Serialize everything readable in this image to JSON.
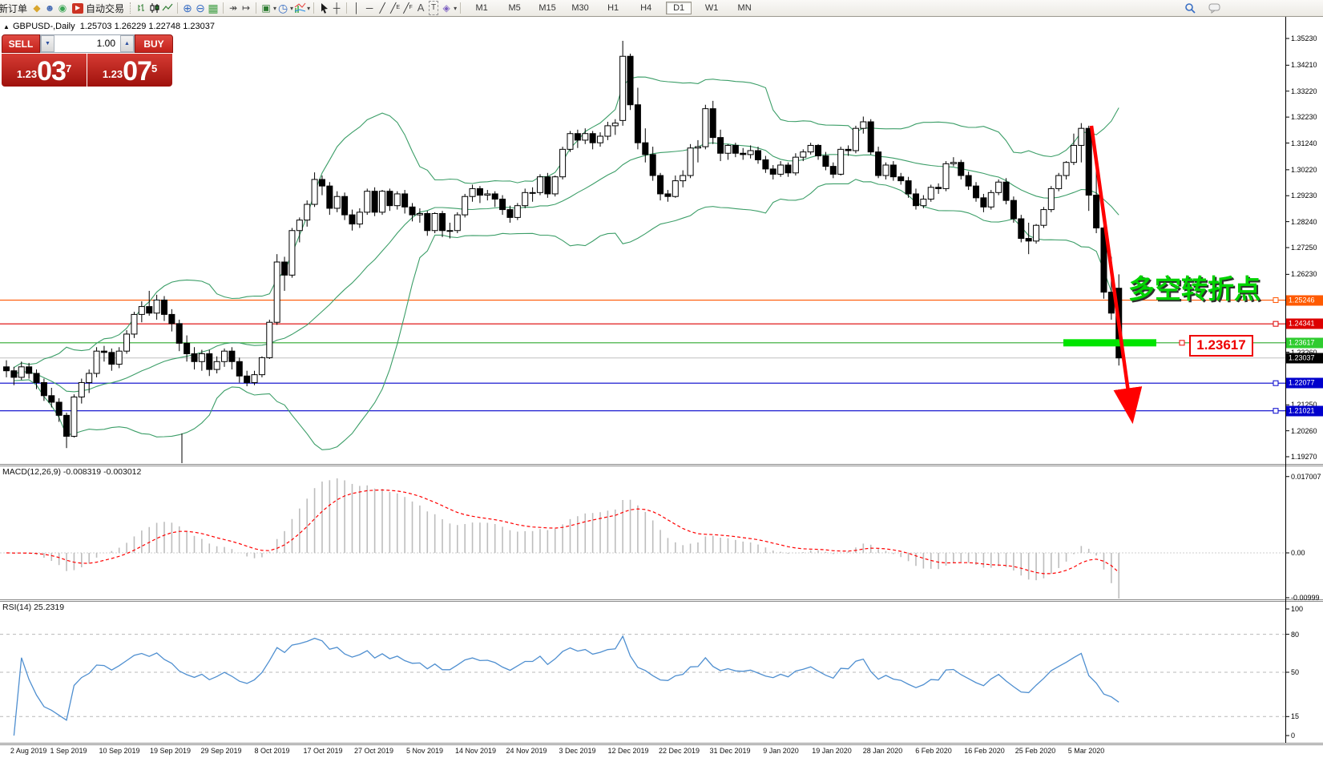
{
  "window": {
    "title_symbol": "GBPUSD-,Daily",
    "title_ohlc": "1.25703 1.26229 1.22748 1.23037"
  },
  "toolbar": {
    "new_order": "新订单",
    "autotrading": "自动交易",
    "timeframes": [
      "M1",
      "M5",
      "M15",
      "M30",
      "H1",
      "H4",
      "D1",
      "W1",
      "MN"
    ],
    "active_timeframe": "D1"
  },
  "trade_panel": {
    "sell_label": "SELL",
    "buy_label": "BUY",
    "volume": "1.00",
    "sell_price_small": "1.23",
    "sell_price_big": "03",
    "sell_price_sup": "7",
    "buy_price_small": "1.23",
    "buy_price_big": "07",
    "buy_price_sup": "5"
  },
  "annotations": {
    "turning_point": "多空转折点",
    "price_box": "1.23617"
  },
  "panes": {
    "macd_label": "MACD(12,26,9) -0.008319 -0.003012",
    "rsi_label": "RSI(14) 25.2319"
  },
  "axes": {
    "main_ticks": [
      "1.35230",
      "1.34210",
      "1.33220",
      "1.32230",
      "1.31240",
      "1.30220",
      "1.29230",
      "1.28240",
      "1.27250",
      "1.26230",
      "1.23260",
      "1.21250",
      "1.20260",
      "1.19270"
    ],
    "macd_ticks": [
      "0.017007",
      "0.00",
      "-0.00999"
    ],
    "rsi_ticks": [
      "100",
      "80",
      "50",
      "15",
      "0"
    ],
    "dates": [
      "2 Aug 2019",
      "1 Sep 2019",
      "10 Sep 2019",
      "19 Sep 2019",
      "29 Sep 2019",
      "8 Oct 2019",
      "17 Oct 2019",
      "27 Oct 2019",
      "5 Nov 2019",
      "14 Nov 2019",
      "24 Nov 2019",
      "3 Dec 2019",
      "12 Dec 2019",
      "22 Dec 2019",
      "31 Dec 2019",
      "9 Jan 2020",
      "19 Jan 2020",
      "28 Jan 2020",
      "6 Feb 2020",
      "16 Feb 2020",
      "25 Feb 2020",
      "5 Mar 2020"
    ]
  },
  "chart_data": {
    "type": "candlestick",
    "symbol": "GBPUSD-",
    "timeframe": "Daily",
    "title": "GBPUSD-,Daily",
    "last_ohlc": {
      "open": 1.25703,
      "high": 1.26229,
      "low": 1.22748,
      "close": 1.23037
    },
    "ylim": [
      1.1902,
      1.3609
    ],
    "grid": false,
    "candles": [
      [
        1.227,
        1.2295,
        1.223,
        1.2255
      ],
      [
        1.2255,
        1.227,
        1.22,
        1.223
      ],
      [
        1.223,
        1.229,
        1.222,
        1.227
      ],
      [
        1.227,
        1.2285,
        1.2225,
        1.2245
      ],
      [
        1.2245,
        1.226,
        1.2185,
        1.221
      ],
      [
        1.221,
        1.2225,
        1.214,
        1.216
      ],
      [
        1.216,
        1.219,
        1.2115,
        1.2135
      ],
      [
        1.2135,
        1.215,
        1.206,
        1.2085
      ],
      [
        1.2085,
        1.2095,
        1.196,
        1.2005
      ],
      [
        1.2005,
        1.2165,
        1.2,
        1.2155
      ],
      [
        1.2155,
        1.2225,
        1.213,
        1.221
      ],
      [
        1.221,
        1.226,
        1.217,
        1.2245
      ],
      [
        1.2245,
        1.2345,
        1.223,
        1.233
      ],
      [
        1.233,
        1.235,
        1.229,
        1.2325
      ],
      [
        1.2325,
        1.234,
        1.2255,
        1.228
      ],
      [
        1.228,
        1.2345,
        1.2265,
        1.233
      ],
      [
        1.233,
        1.241,
        1.232,
        1.2395
      ],
      [
        1.2395,
        1.248,
        1.238,
        1.247
      ],
      [
        1.247,
        1.252,
        1.244,
        1.25
      ],
      [
        1.25,
        1.256,
        1.2465,
        1.2475
      ],
      [
        1.2475,
        1.2545,
        1.245,
        1.2525
      ],
      [
        1.2525,
        1.254,
        1.2445,
        1.247
      ],
      [
        1.247,
        1.249,
        1.2405,
        1.2435
      ],
      [
        1.2435,
        1.245,
        1.233,
        1.236
      ],
      [
        1.236,
        1.239,
        1.229,
        1.232
      ],
      [
        1.232,
        1.2345,
        1.226,
        1.229
      ],
      [
        1.229,
        1.2335,
        1.2255,
        1.232
      ],
      [
        1.232,
        1.2335,
        1.2235,
        1.226
      ],
      [
        1.226,
        1.231,
        1.2245,
        1.229
      ],
      [
        1.229,
        1.234,
        1.227,
        1.233
      ],
      [
        1.233,
        1.2345,
        1.226,
        1.229
      ],
      [
        1.229,
        1.2305,
        1.221,
        1.2235
      ],
      [
        1.2235,
        1.2255,
        1.2196,
        1.221
      ],
      [
        1.221,
        1.2255,
        1.22,
        1.224
      ],
      [
        1.224,
        1.231,
        1.223,
        1.2305
      ],
      [
        1.2305,
        1.245,
        1.23,
        1.244
      ],
      [
        1.244,
        1.27,
        1.243,
        1.267
      ],
      [
        1.267,
        1.269,
        1.256,
        1.262
      ],
      [
        1.262,
        1.28,
        1.261,
        1.279
      ],
      [
        1.279,
        1.284,
        1.2745,
        1.283
      ],
      [
        1.283,
        1.2905,
        1.2805,
        1.289
      ],
      [
        1.289,
        1.3012,
        1.288,
        1.2985
      ],
      [
        1.2985,
        1.3,
        1.2925,
        1.296
      ],
      [
        1.296,
        1.2975,
        1.285,
        1.2875
      ],
      [
        1.2875,
        1.294,
        1.286,
        1.292
      ],
      [
        1.292,
        1.2935,
        1.283,
        1.285
      ],
      [
        1.285,
        1.287,
        1.279,
        1.2815
      ],
      [
        1.2815,
        1.2875,
        1.28,
        1.286
      ],
      [
        1.286,
        1.295,
        1.285,
        1.294
      ],
      [
        1.294,
        1.2955,
        1.2845,
        1.286
      ],
      [
        1.286,
        1.2945,
        1.285,
        1.294
      ],
      [
        1.294,
        1.295,
        1.2865,
        1.2885
      ],
      [
        1.2885,
        1.294,
        1.287,
        1.293
      ],
      [
        1.293,
        1.2945,
        1.2855,
        1.288
      ],
      [
        1.288,
        1.2895,
        1.2825,
        1.285
      ],
      [
        1.285,
        1.2875,
        1.282,
        1.2855
      ],
      [
        1.2855,
        1.2865,
        1.277,
        1.279
      ],
      [
        1.279,
        1.286,
        1.278,
        1.2855
      ],
      [
        1.2855,
        1.2865,
        1.2765,
        1.279
      ],
      [
        1.279,
        1.282,
        1.276,
        1.279
      ],
      [
        1.279,
        1.286,
        1.278,
        1.285
      ],
      [
        1.285,
        1.293,
        1.284,
        1.292
      ],
      [
        1.292,
        1.2965,
        1.29,
        1.295
      ],
      [
        1.295,
        1.296,
        1.2895,
        1.2925
      ],
      [
        1.2925,
        1.2945,
        1.2905,
        1.293
      ],
      [
        1.293,
        1.294,
        1.288,
        1.291
      ],
      [
        1.291,
        1.2925,
        1.285,
        1.287
      ],
      [
        1.287,
        1.2885,
        1.282,
        1.284
      ],
      [
        1.284,
        1.2895,
        1.283,
        1.2885
      ],
      [
        1.2885,
        1.295,
        1.2875,
        1.2935
      ],
      [
        1.2935,
        1.2955,
        1.29,
        1.2935
      ],
      [
        1.2935,
        1.3005,
        1.2925,
        1.2995
      ],
      [
        1.2995,
        1.301,
        1.2915,
        1.293
      ],
      [
        1.293,
        1.3,
        1.292,
        1.2995
      ],
      [
        1.2995,
        1.311,
        1.2985,
        1.31
      ],
      [
        1.31,
        1.317,
        1.309,
        1.316
      ],
      [
        1.316,
        1.3175,
        1.3105,
        1.3135
      ],
      [
        1.3135,
        1.318,
        1.312,
        1.316
      ],
      [
        1.316,
        1.317,
        1.31,
        1.3125
      ],
      [
        1.3125,
        1.3165,
        1.311,
        1.315
      ],
      [
        1.315,
        1.3205,
        1.3135,
        1.319
      ],
      [
        1.319,
        1.3215,
        1.3155,
        1.32
      ],
      [
        1.321,
        1.3514,
        1.319,
        1.3455
      ],
      [
        1.3455,
        1.3465,
        1.325,
        1.327
      ],
      [
        1.327,
        1.3335,
        1.31,
        1.3125
      ],
      [
        1.3125,
        1.318,
        1.305,
        1.308
      ],
      [
        1.308,
        1.311,
        1.298,
        1.3
      ],
      [
        1.3,
        1.301,
        1.2905,
        1.293
      ],
      [
        1.293,
        1.2945,
        1.29,
        1.292
      ],
      [
        1.292,
        1.3,
        1.2915,
        1.298
      ],
      [
        1.298,
        1.302,
        1.2955,
        1.3
      ],
      [
        1.3,
        1.312,
        1.299,
        1.3105
      ],
      [
        1.3105,
        1.3135,
        1.305,
        1.311
      ],
      [
        1.311,
        1.327,
        1.31,
        1.3255
      ],
      [
        1.3255,
        1.3285,
        1.312,
        1.3145
      ],
      [
        1.3145,
        1.3175,
        1.3055,
        1.3085
      ],
      [
        1.3085,
        1.312,
        1.306,
        1.3115
      ],
      [
        1.3115,
        1.3125,
        1.307,
        1.3085
      ],
      [
        1.3085,
        1.3105,
        1.306,
        1.308
      ],
      [
        1.308,
        1.3115,
        1.3065,
        1.3095
      ],
      [
        1.3095,
        1.311,
        1.3045,
        1.306
      ],
      [
        1.306,
        1.3075,
        1.301,
        1.3025
      ],
      [
        1.3025,
        1.304,
        1.2985,
        1.3005
      ],
      [
        1.3005,
        1.3055,
        1.2995,
        1.304
      ],
      [
        1.304,
        1.305,
        1.2995,
        1.301
      ],
      [
        1.301,
        1.3085,
        1.3,
        1.307
      ],
      [
        1.307,
        1.31,
        1.3055,
        1.309
      ],
      [
        1.309,
        1.3125,
        1.308,
        1.3115
      ],
      [
        1.3115,
        1.312,
        1.306,
        1.3075
      ],
      [
        1.3075,
        1.309,
        1.302,
        1.3035
      ],
      [
        1.3035,
        1.305,
        1.299,
        1.3005
      ],
      [
        1.3005,
        1.311,
        1.3,
        1.31
      ],
      [
        1.31,
        1.3115,
        1.3075,
        1.3095
      ],
      [
        1.3095,
        1.319,
        1.3085,
        1.318
      ],
      [
        1.318,
        1.3225,
        1.316,
        1.3205
      ],
      [
        1.3205,
        1.3215,
        1.308,
        1.309
      ],
      [
        1.309,
        1.311,
        1.299,
        1.3
      ],
      [
        1.3,
        1.305,
        1.2985,
        1.304
      ],
      [
        1.304,
        1.3055,
        1.298,
        1.2995
      ],
      [
        1.2995,
        1.301,
        1.2965,
        1.298
      ],
      [
        1.298,
        1.2995,
        1.2915,
        1.293
      ],
      [
        1.293,
        1.295,
        1.287,
        1.2885
      ],
      [
        1.2885,
        1.2925,
        1.2875,
        1.291
      ],
      [
        1.291,
        1.2965,
        1.29,
        1.2955
      ],
      [
        1.2955,
        1.297,
        1.293,
        1.295
      ],
      [
        1.295,
        1.3055,
        1.294,
        1.3045
      ],
      [
        1.3045,
        1.307,
        1.3035,
        1.305
      ],
      [
        1.305,
        1.306,
        1.2985,
        1.3
      ],
      [
        1.3,
        1.3015,
        1.2945,
        1.296
      ],
      [
        1.296,
        1.2975,
        1.29,
        1.2915
      ],
      [
        1.2915,
        1.293,
        1.286,
        1.288
      ],
      [
        1.288,
        1.2945,
        1.287,
        1.2935
      ],
      [
        1.2935,
        1.2985,
        1.2925,
        1.2975
      ],
      [
        1.2975,
        1.299,
        1.289,
        1.2905
      ],
      [
        1.2905,
        1.292,
        1.282,
        1.2835
      ],
      [
        1.2835,
        1.285,
        1.2745,
        1.276
      ],
      [
        1.276,
        1.282,
        1.27,
        1.275
      ],
      [
        1.275,
        1.2815,
        1.274,
        1.281
      ],
      [
        1.281,
        1.288,
        1.28,
        1.287
      ],
      [
        1.287,
        1.296,
        1.286,
        1.295
      ],
      [
        1.295,
        1.301,
        1.294,
        1.3
      ],
      [
        1.3,
        1.3055,
        1.2985,
        1.305
      ],
      [
        1.305,
        1.316,
        1.304,
        1.3115
      ],
      [
        1.3115,
        1.32,
        1.305,
        1.318
      ],
      [
        1.318,
        1.319,
        1.2865,
        1.2925
      ],
      [
        1.2925,
        1.302,
        1.278,
        1.28
      ],
      [
        1.28,
        1.2815,
        1.253,
        1.2555
      ],
      [
        1.2555,
        1.269,
        1.245,
        1.2475
      ],
      [
        1.257,
        1.2623,
        1.2275,
        1.2304
      ]
    ],
    "overlays": {
      "bollinger": {
        "period": 20,
        "deviation": 2,
        "color": "#3c9e68"
      }
    },
    "subcharts": [
      {
        "type": "macd_histogram",
        "label": "MACD(12,26,9)",
        "fast": 12,
        "slow": 26,
        "signal": 9,
        "last_values": [
          -0.008319,
          -0.003012
        ],
        "histogram_color": "#bdbdbd",
        "signal_color": "#ff0000",
        "yticks": [
          0.017007,
          0,
          -0.00999
        ]
      },
      {
        "type": "rsi_line",
        "label": "RSI(14)",
        "period": 14,
        "last_value": 25.2319,
        "color": "#4f8fd0",
        "levels": [
          80,
          50,
          15
        ],
        "yticks": [
          100,
          80,
          50,
          15,
          0
        ]
      }
    ],
    "horizontal_lines": [
      {
        "label": "1.25246",
        "price": 1.25246,
        "color": "#ff5500",
        "badge": "#ff5a00",
        "handle": true
      },
      {
        "label": "1.24341",
        "price": 1.24341,
        "color": "#dd0000",
        "badge": "#dd0000",
        "handle": true
      },
      {
        "label": "1.23617",
        "price": 1.23617,
        "color": "#2faa2f",
        "badge": "#2fcc2f",
        "handle": false
      },
      {
        "label": "1.23037",
        "price": 1.23037,
        "color": "#c0c0c0",
        "badge": "#000000",
        "current": true,
        "handle": false
      },
      {
        "label": "1.22077",
        "price": 1.22077,
        "color": "#0000cc",
        "badge": "#0000cc",
        "handle": true
      },
      {
        "label": "1.21021",
        "price": 1.21021,
        "color": "#0000cc",
        "badge": "#0000cc",
        "handle": true
      }
    ],
    "drawing_objects": {
      "trend_arrow": {
        "color": "#ff0000",
        "from_price": 1.319,
        "to_price": 1.215,
        "note": "thick red down arrow over crash candles"
      },
      "highlight_bar": {
        "color": "#00e400",
        "price": 1.23617
      },
      "text_label": {
        "text": "多空转折点",
        "color": "#00d300"
      },
      "price_callout": {
        "text": "1.23617",
        "color": "#ee0000"
      }
    }
  }
}
